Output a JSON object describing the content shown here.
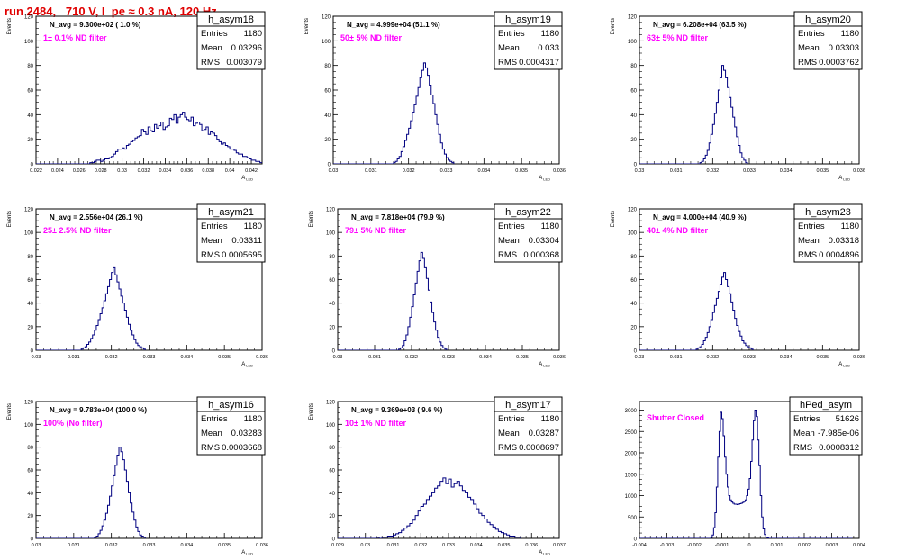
{
  "page_title": "run 2484,   710 V, I_pe ≈ 0.3 nA, 120 Hz",
  "colors": {
    "hist": "#000080",
    "note": "#ff00ff",
    "title": "#e00000",
    "frame": "#000000"
  },
  "chart_data": [
    {
      "type": "histogram",
      "name": "h_asym18",
      "stats": {
        "entries": "1180",
        "mean": "0.03296",
        "rms": "0.003079"
      },
      "navg": "N_avg = 9.300e+02 ( 1.0 %)",
      "note": " 1± 0.1% ND filter",
      "ylabel": "Events",
      "xlabel": "A_LED",
      "xlim": [
        0.022,
        0.043
      ],
      "ylim": [
        0,
        120
      ],
      "xticks": [
        0.022,
        0.024,
        0.026,
        0.028,
        0.03,
        0.032,
        0.034,
        0.036,
        0.038,
        0.04,
        0.042
      ],
      "xtick_labels": [
        "0.022",
        "0.024",
        "0.026",
        "0.028",
        "0.03",
        "0.032",
        "0.034",
        "0.036",
        "0.038",
        "0.04",
        "0.042"
      ],
      "yticks": [
        0,
        20,
        40,
        60,
        80,
        100,
        120
      ],
      "bins": {
        "start": 0.022,
        "width": 0.0002,
        "counts": [
          0,
          0,
          0,
          0,
          0,
          0,
          0,
          0,
          0,
          0,
          0,
          0,
          0,
          0,
          0,
          0,
          0,
          0,
          0,
          0,
          0,
          0,
          0,
          0,
          0,
          1,
          1,
          2,
          3,
          3,
          2,
          3,
          4,
          4,
          5,
          6,
          8,
          10,
          12,
          12,
          13,
          12,
          15,
          16,
          18,
          19,
          21,
          22,
          23,
          28,
          26,
          24,
          30,
          27,
          26,
          32,
          29,
          31,
          34,
          28,
          30,
          31,
          37,
          36,
          40,
          33,
          38,
          40,
          42,
          38,
          36,
          35,
          38,
          31,
          33,
          34,
          32,
          27,
          28,
          30,
          24,
          26,
          25,
          23,
          20,
          18,
          16,
          17,
          15,
          14,
          12,
          12,
          11,
          9,
          8,
          8,
          6,
          6,
          5,
          4,
          3,
          3,
          2,
          2,
          1,
          1
        ]
      }
    },
    {
      "type": "histogram",
      "name": "h_asym19",
      "stats": {
        "entries": "1180",
        "mean": "0.033",
        "rms": "0.0004317"
      },
      "navg": "N_avg = 4.999e+04 (51.1 %)",
      "note": " 50± 5% ND filter",
      "ylabel": "Events",
      "xlabel": "A_LED",
      "xlim": [
        0.03,
        0.036
      ],
      "ylim": [
        0,
        120
      ],
      "xticks": [
        0.03,
        0.031,
        0.032,
        0.033,
        0.034,
        0.035,
        0.036
      ],
      "xtick_labels": [
        "0.03",
        "0.031",
        "0.032",
        "0.033",
        "0.034",
        "0.035",
        "0.036"
      ],
      "yticks": [
        0,
        20,
        40,
        60,
        80,
        100,
        120
      ],
      "bins": {
        "start": 0.03,
        "width": 5e-05,
        "counts": [
          0,
          0,
          0,
          0,
          0,
          0,
          0,
          0,
          0,
          0,
          0,
          0,
          0,
          0,
          0,
          0,
          0,
          0,
          0,
          0,
          0,
          0,
          0,
          0,
          0,
          0,
          0,
          0,
          0,
          0,
          0,
          0,
          1,
          2,
          4,
          6,
          10,
          14,
          19,
          24,
          29,
          35,
          42,
          48,
          55,
          62,
          70,
          76,
          82,
          78,
          72,
          64,
          56,
          49,
          40,
          32,
          24,
          17,
          12,
          8,
          5,
          3,
          2,
          1
        ]
      }
    },
    {
      "type": "histogram",
      "name": "h_asym20",
      "stats": {
        "entries": "1180",
        "mean": "0.03303",
        "rms": "0.0003762"
      },
      "navg": "N_avg = 6.208e+04 (63.5 %)",
      "note": " 63± 5% ND filter",
      "ylabel": "Events",
      "xlabel": "A_LED",
      "xlim": [
        0.03,
        0.036
      ],
      "ylim": [
        0,
        120
      ],
      "xticks": [
        0.03,
        0.031,
        0.032,
        0.033,
        0.034,
        0.035,
        0.036
      ],
      "xtick_labels": [
        "0.03",
        "0.031",
        "0.032",
        "0.033",
        "0.034",
        "0.035",
        "0.036"
      ],
      "yticks": [
        0,
        20,
        40,
        60,
        80,
        100,
        120
      ],
      "bins": {
        "start": 0.03,
        "width": 5e-05,
        "counts": [
          0,
          0,
          0,
          0,
          0,
          0,
          0,
          0,
          0,
          0,
          0,
          0,
          0,
          0,
          0,
          0,
          0,
          0,
          0,
          0,
          0,
          0,
          0,
          0,
          0,
          0,
          0,
          0,
          0,
          0,
          0,
          0,
          0,
          1,
          2,
          4,
          7,
          11,
          17,
          24,
          32,
          41,
          50,
          60,
          70,
          80,
          76,
          70,
          62,
          54,
          46,
          38,
          30,
          22,
          15,
          9,
          5,
          3,
          1
        ]
      }
    },
    {
      "type": "histogram",
      "name": "h_asym21",
      "stats": {
        "entries": "1180",
        "mean": "0.03311",
        "rms": "0.0005695"
      },
      "navg": "N_avg = 2.556e+04 (26.1 %)",
      "note": " 25± 2.5% ND filter",
      "ylabel": "Events",
      "xlabel": "A_LED",
      "xlim": [
        0.03,
        0.036
      ],
      "ylim": [
        0,
        120
      ],
      "xticks": [
        0.03,
        0.031,
        0.032,
        0.033,
        0.034,
        0.035,
        0.036
      ],
      "xtick_labels": [
        "0.03",
        "0.031",
        "0.032",
        "0.033",
        "0.034",
        "0.035",
        "0.036"
      ],
      "yticks": [
        0,
        20,
        40,
        60,
        80,
        100,
        120
      ],
      "bins": {
        "start": 0.03,
        "width": 5e-05,
        "counts": [
          0,
          0,
          0,
          0,
          0,
          0,
          0,
          0,
          0,
          0,
          0,
          0,
          0,
          0,
          0,
          0,
          0,
          0,
          0,
          0,
          0,
          0,
          0,
          0,
          1,
          2,
          3,
          5,
          7,
          10,
          13,
          17,
          21,
          26,
          31,
          36,
          42,
          48,
          54,
          60,
          66,
          70,
          64,
          58,
          52,
          46,
          40,
          34,
          28,
          22,
          17,
          13,
          9,
          6,
          4,
          3,
          2,
          1
        ]
      }
    },
    {
      "type": "histogram",
      "name": "h_asym22",
      "stats": {
        "entries": "1180",
        "mean": "0.03304",
        "rms": "0.000368"
      },
      "navg": "N_avg = 7.818e+04 (79.9 %)",
      "note": " 79± 5% ND filter",
      "ylabel": "Events",
      "xlabel": "A_LED",
      "xlim": [
        0.03,
        0.036
      ],
      "ylim": [
        0,
        120
      ],
      "xticks": [
        0.03,
        0.031,
        0.032,
        0.033,
        0.034,
        0.035,
        0.036
      ],
      "xtick_labels": [
        "0.03",
        "0.031",
        "0.032",
        "0.033",
        "0.034",
        "0.035",
        "0.036"
      ],
      "yticks": [
        0,
        20,
        40,
        60,
        80,
        100,
        120
      ],
      "bins": {
        "start": 0.03,
        "width": 5e-05,
        "counts": [
          0,
          0,
          0,
          0,
          0,
          0,
          0,
          0,
          0,
          0,
          0,
          0,
          0,
          0,
          0,
          0,
          0,
          0,
          0,
          0,
          0,
          0,
          0,
          0,
          0,
          0,
          0,
          0,
          0,
          0,
          0,
          0,
          0,
          1,
          2,
          4,
          8,
          13,
          20,
          28,
          37,
          47,
          57,
          67,
          76,
          83,
          78,
          70,
          61,
          51,
          41,
          32,
          24,
          17,
          11,
          7,
          4,
          2,
          1
        ]
      }
    },
    {
      "type": "histogram",
      "name": "h_asym23",
      "stats": {
        "entries": "1180",
        "mean": "0.03318",
        "rms": "0.0004896"
      },
      "navg": "N_avg = 4.000e+04 (40.9 %)",
      "note": " 40± 4% ND filter",
      "ylabel": "Events",
      "xlabel": "A_LED",
      "xlim": [
        0.03,
        0.036
      ],
      "ylim": [
        0,
        120
      ],
      "xticks": [
        0.03,
        0.031,
        0.032,
        0.033,
        0.034,
        0.035,
        0.036
      ],
      "xtick_labels": [
        "0.03",
        "0.031",
        "0.032",
        "0.033",
        "0.034",
        "0.035",
        "0.036"
      ],
      "yticks": [
        0,
        20,
        40,
        60,
        80,
        100,
        120
      ],
      "bins": {
        "start": 0.03,
        "width": 5e-05,
        "counts": [
          0,
          0,
          0,
          0,
          0,
          0,
          0,
          0,
          0,
          0,
          0,
          0,
          0,
          0,
          0,
          0,
          0,
          0,
          0,
          0,
          0,
          0,
          0,
          0,
          0,
          0,
          0,
          0,
          0,
          0,
          0,
          1,
          2,
          3,
          5,
          8,
          11,
          15,
          20,
          26,
          32,
          38,
          44,
          50,
          56,
          62,
          66,
          60,
          54,
          48,
          41,
          34,
          27,
          21,
          16,
          12,
          8,
          6,
          4,
          3,
          2,
          1
        ]
      }
    },
    {
      "type": "histogram",
      "name": "h_asym16",
      "stats": {
        "entries": "1180",
        "mean": "0.03283",
        "rms": "0.0003668"
      },
      "navg": "N_avg = 9.783e+04 (100.0 %)",
      "note": " 100% (No filter)",
      "ylabel": "Events",
      "xlabel": "A_LED",
      "xlim": [
        0.03,
        0.036
      ],
      "ylim": [
        0,
        120
      ],
      "xticks": [
        0.03,
        0.031,
        0.032,
        0.033,
        0.034,
        0.035,
        0.036
      ],
      "xtick_labels": [
        "0.03",
        "0.031",
        "0.032",
        "0.033",
        "0.034",
        "0.035",
        "0.036"
      ],
      "yticks": [
        0,
        20,
        40,
        60,
        80,
        100,
        120
      ],
      "bins": {
        "start": 0.03,
        "width": 5e-05,
        "counts": [
          0,
          0,
          0,
          0,
          0,
          0,
          0,
          0,
          0,
          0,
          0,
          0,
          0,
          0,
          0,
          0,
          0,
          0,
          0,
          0,
          0,
          0,
          0,
          0,
          0,
          0,
          0,
          0,
          0,
          0,
          0,
          1,
          2,
          4,
          7,
          11,
          16,
          22,
          29,
          37,
          46,
          55,
          64,
          73,
          80,
          76,
          69,
          60,
          50,
          40,
          31,
          23,
          16,
          10,
          6,
          3,
          2,
          1
        ]
      }
    },
    {
      "type": "histogram",
      "name": "h_asym17",
      "stats": {
        "entries": "1180",
        "mean": "0.03287",
        "rms": "0.0008697"
      },
      "navg": "N_avg = 9.369e+03 ( 9.6 %)",
      "note": " 10± 1% ND filter",
      "ylabel": "Events",
      "xlabel": "A_LED",
      "xlim": [
        0.029,
        0.037
      ],
      "ylim": [
        0,
        120
      ],
      "xticks": [
        0.029,
        0.03,
        0.031,
        0.032,
        0.033,
        0.034,
        0.035,
        0.036,
        0.037
      ],
      "xtick_labels": [
        "0.029",
        "0.03",
        "0.031",
        "0.032",
        "0.033",
        "0.034",
        "0.035",
        "0.036",
        "0.037"
      ],
      "yticks": [
        0,
        20,
        40,
        60,
        80,
        100,
        120
      ],
      "bins": {
        "start": 0.029,
        "width": 0.0001,
        "counts": [
          0,
          0,
          0,
          0,
          0,
          0,
          0,
          0,
          0,
          0,
          0,
          0,
          0,
          0,
          1,
          0,
          1,
          1,
          2,
          2,
          3,
          4,
          5,
          7,
          9,
          11,
          13,
          16,
          20,
          24,
          28,
          30,
          34,
          37,
          40,
          44,
          46,
          50,
          53,
          48,
          52,
          45,
          48,
          50,
          46,
          42,
          40,
          36,
          34,
          30,
          26,
          22,
          20,
          17,
          14,
          12,
          10,
          8,
          6,
          5,
          4,
          3,
          2,
          2,
          1,
          1
        ]
      }
    },
    {
      "type": "histogram",
      "name": "hPed_asym",
      "stats": {
        "entries": "51626",
        "mean": "-7.985e-06",
        "rms": "0.0008312"
      },
      "navg": "",
      "note": "Shutter Closed",
      "ylabel": "",
      "xlabel": "",
      "xlim": [
        -0.004,
        0.004
      ],
      "ylim": [
        0,
        3200
      ],
      "xticks": [
        -0.004,
        -0.003,
        -0.002,
        -0.001,
        0,
        0.001,
        0.002,
        0.003,
        0.004
      ],
      "xtick_labels": [
        "-0.004",
        "-0.003",
        "-0.002",
        "-0.001",
        "0",
        "0.001",
        "0.002",
        "0.003",
        "0.004"
      ],
      "yticks": [
        0,
        500,
        1000,
        1500,
        2000,
        2500,
        3000
      ],
      "bins": {
        "start": -0.004,
        "width": 5e-05,
        "counts": [
          0,
          0,
          0,
          0,
          0,
          0,
          0,
          0,
          0,
          0,
          0,
          0,
          0,
          0,
          0,
          0,
          0,
          0,
          0,
          0,
          0,
          0,
          0,
          0,
          0,
          0,
          0,
          0,
          0,
          0,
          0,
          0,
          0,
          0,
          0,
          0,
          0,
          0,
          0,
          0,
          0,
          0,
          0,
          0,
          0,
          0,
          0,
          0,
          0,
          0,
          0,
          0,
          20,
          80,
          250,
          600,
          1200,
          1900,
          2500,
          2950,
          2800,
          2400,
          1900,
          1500,
          1200,
          1000,
          900,
          850,
          820,
          800,
          800,
          790,
          800,
          810,
          820,
          840,
          860,
          900,
          1000,
          1150,
          1400,
          1800,
          2300,
          2750,
          3000,
          2850,
          2300,
          1700,
          1000,
          500,
          220,
          90,
          30,
          10,
          0,
          0,
          0,
          0,
          0,
          0,
          0,
          0,
          0,
          0,
          0,
          0,
          0,
          0,
          0,
          0,
          0,
          0,
          0,
          0,
          0,
          0,
          0,
          0,
          0,
          0,
          0,
          0,
          0,
          0,
          0,
          0,
          0,
          0,
          0,
          0,
          0,
          0,
          0,
          0,
          0,
          0,
          0,
          0,
          0,
          0,
          0,
          0,
          0,
          0,
          0,
          0,
          0,
          0,
          0,
          0,
          0,
          0,
          0,
          0,
          0
        ]
      }
    }
  ]
}
